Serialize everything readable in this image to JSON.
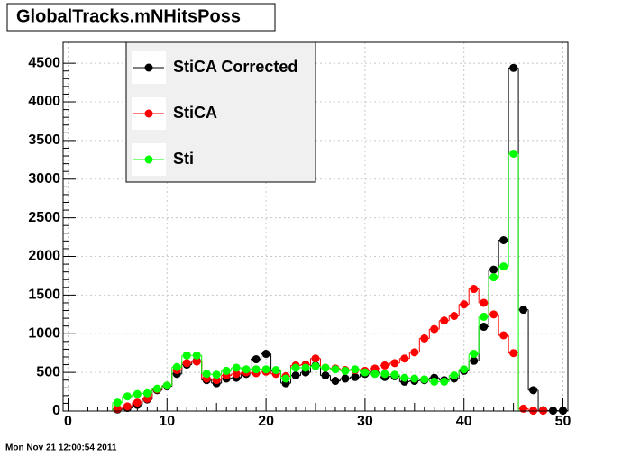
{
  "chart_data": {
    "type": "histogram-step",
    "title": "GlobalTracks.mNHitsPoss",
    "annotations": [
      "Mon Nov 21 12:00:54 2011"
    ],
    "x": [
      0,
      1,
      2,
      3,
      4,
      5,
      6,
      7,
      8,
      9,
      10,
      11,
      12,
      13,
      14,
      15,
      16,
      17,
      18,
      19,
      20,
      21,
      22,
      23,
      24,
      25,
      26,
      27,
      28,
      29,
      30,
      31,
      32,
      33,
      34,
      35,
      36,
      37,
      38,
      39,
      40,
      41,
      42,
      43,
      44,
      45,
      46,
      47,
      48,
      49,
      50
    ],
    "series": [
      {
        "name": "StiCA Corrected",
        "color": "#000000",
        "values": [
          0,
          0,
          0,
          0,
          0,
          20,
          40,
          80,
          150,
          270,
          320,
          480,
          600,
          650,
          400,
          360,
          420,
          430,
          480,
          670,
          740,
          520,
          360,
          460,
          500,
          590,
          460,
          390,
          420,
          440,
          480,
          500,
          440,
          450,
          380,
          390,
          400,
          430,
          400,
          420,
          520,
          650,
          1090,
          1830,
          2210,
          4440,
          1310,
          270,
          10,
          5,
          5
        ]
      },
      {
        "name": "StiCA",
        "color": "#ff0000",
        "values": [
          0,
          0,
          0,
          0,
          0,
          30,
          60,
          110,
          160,
          280,
          330,
          530,
          620,
          640,
          420,
          400,
          460,
          480,
          500,
          490,
          510,
          480,
          450,
          590,
          600,
          680,
          560,
          550,
          530,
          530,
          520,
          550,
          590,
          620,
          680,
          760,
          940,
          1060,
          1170,
          1230,
          1380,
          1580,
          1400,
          1250,
          980,
          750,
          30,
          5,
          5,
          0,
          0
        ]
      },
      {
        "name": "Sti",
        "color": "#00ff00",
        "values": [
          0,
          0,
          0,
          0,
          0,
          110,
          190,
          220,
          230,
          290,
          330,
          570,
          720,
          720,
          480,
          470,
          520,
          560,
          540,
          540,
          540,
          530,
          420,
          560,
          560,
          580,
          560,
          540,
          520,
          540,
          500,
          480,
          480,
          470,
          430,
          420,
          410,
          380,
          380,
          460,
          540,
          740,
          1220,
          1730,
          1870,
          3330,
          0,
          0,
          0,
          0,
          0
        ]
      }
    ],
    "xlim": [
      -0.5,
      50.5
    ],
    "ylim": [
      0,
      4770
    ],
    "xticks": [
      0,
      10,
      20,
      30,
      40,
      50
    ],
    "yticks": [
      0,
      500,
      1000,
      1500,
      2000,
      2500,
      3000,
      3500,
      4000,
      4500
    ],
    "grid": true,
    "legend_position": "upper-left"
  }
}
